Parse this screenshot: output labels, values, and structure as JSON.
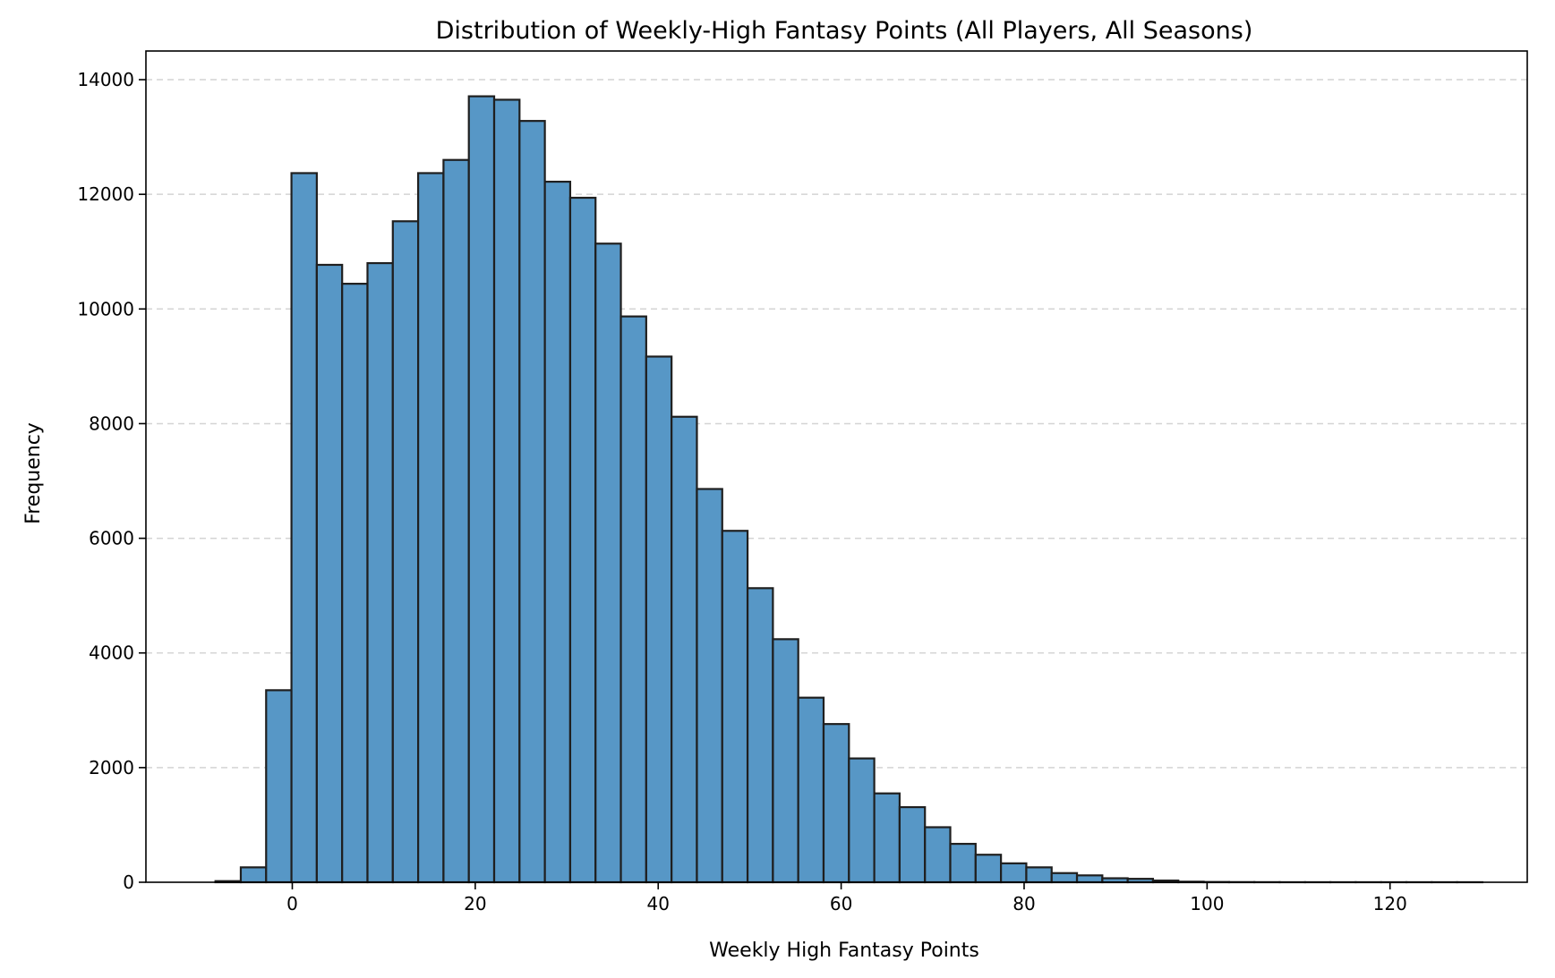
{
  "chart_data": {
    "type": "bar",
    "title": "Distribution of Weekly-High Fantasy Points (All Players, All Seasons)",
    "xlabel": "Weekly High Fantasy Points",
    "ylabel": "Frequency",
    "xlim": [
      -16,
      135
    ],
    "ylim": [
      0,
      14500
    ],
    "xticks": [
      0,
      20,
      40,
      60,
      80,
      100,
      120
    ],
    "yticks": [
      0,
      2000,
      4000,
      6000,
      8000,
      10000,
      12000,
      14000
    ],
    "grid": "y dashed",
    "bar_color": "#5797c6",
    "edge_color": "#1f1f1f",
    "bin_start": -8.4,
    "bin_width": 2.77,
    "values": [
      20,
      260,
      3350,
      12370,
      10770,
      10440,
      10800,
      11530,
      12370,
      12600,
      13710,
      13650,
      13280,
      12220,
      11940,
      11140,
      9870,
      9170,
      8120,
      6860,
      6130,
      5130,
      4240,
      3220,
      2760,
      2160,
      1550,
      1310,
      960,
      670,
      480,
      330,
      260,
      160,
      120,
      70,
      60,
      30,
      10,
      5,
      3,
      2,
      1,
      1,
      1,
      1,
      1,
      1,
      1,
      1
    ]
  }
}
